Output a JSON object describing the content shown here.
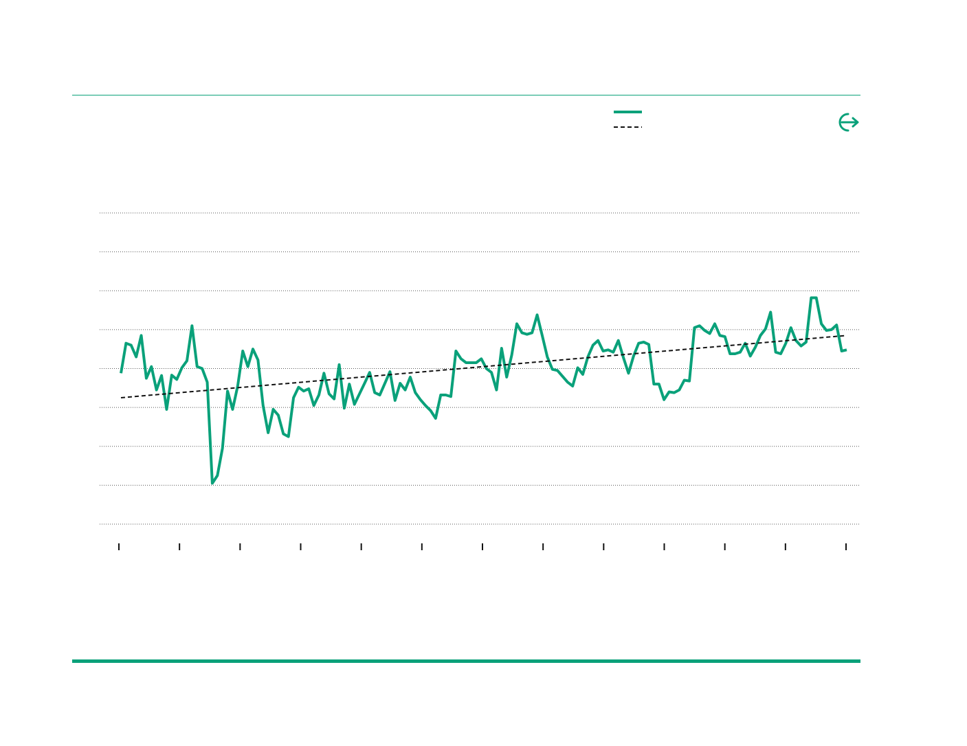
{
  "theme": {
    "accent": "#0aa17a",
    "grid": "#555555",
    "trend": "#111111"
  },
  "legend": {
    "items": [
      {
        "icon": "solid-line",
        "color": "#0aa17a"
      },
      {
        "icon": "dashed-line",
        "color": "#111111"
      }
    ]
  },
  "export": {
    "icon": "export-icon"
  },
  "chart_data": {
    "type": "line",
    "title": "",
    "xlabel": "",
    "ylabel": "",
    "grid": true,
    "ylim": [
      0,
      8
    ],
    "y_gridlines": [
      0,
      1,
      2,
      3,
      4,
      5,
      6,
      7,
      8
    ],
    "x_tick_count": 13,
    "legend_position": "top-right",
    "series": [
      {
        "style": "solid",
        "values": [
          3.88,
          4.65,
          4.6,
          4.3,
          4.85,
          3.75,
          4.05,
          3.45,
          3.82,
          2.95,
          3.83,
          3.72,
          4.02,
          4.2,
          5.1,
          4.05,
          4.0,
          3.65,
          1.05,
          1.25,
          1.95,
          3.42,
          2.95,
          3.55,
          4.45,
          4.05,
          4.5,
          4.22,
          3.05,
          2.35,
          2.95,
          2.8,
          2.32,
          2.25,
          3.25,
          3.52,
          3.42,
          3.48,
          3.05,
          3.32,
          3.88,
          3.35,
          3.22,
          4.1,
          2.98,
          3.6,
          3.08,
          3.35,
          3.62,
          3.9,
          3.38,
          3.32,
          3.62,
          3.92,
          3.18,
          3.62,
          3.45,
          3.78,
          3.38,
          3.2,
          3.05,
          2.92,
          2.72,
          3.32,
          3.32,
          3.28,
          4.45,
          4.25,
          4.15,
          4.15,
          4.15,
          4.25,
          4.0,
          3.9,
          3.45,
          4.52,
          3.78,
          4.35,
          5.15,
          4.92,
          4.88,
          4.92,
          5.38,
          4.85,
          4.3,
          3.98,
          3.95,
          3.8,
          3.65,
          3.55,
          4.02,
          3.85,
          4.3,
          4.6,
          4.72,
          4.45,
          4.48,
          4.42,
          4.72,
          4.28,
          3.88,
          4.32,
          4.65,
          4.68,
          4.62,
          3.6,
          3.6,
          3.2,
          3.4,
          3.38,
          3.45,
          3.7,
          3.68,
          5.05,
          5.1,
          4.98,
          4.9,
          5.15,
          4.85,
          4.82,
          4.38,
          4.38,
          4.42,
          4.65,
          4.32,
          4.55,
          4.85,
          5.02,
          5.45,
          4.42,
          4.38,
          4.65,
          5.05,
          4.72,
          4.58,
          4.68,
          5.82,
          5.82,
          5.15,
          4.98,
          5.0,
          5.12,
          4.45,
          4.48
        ]
      },
      {
        "style": "dashed",
        "values": [
          3.25,
          4.85
        ]
      }
    ]
  }
}
